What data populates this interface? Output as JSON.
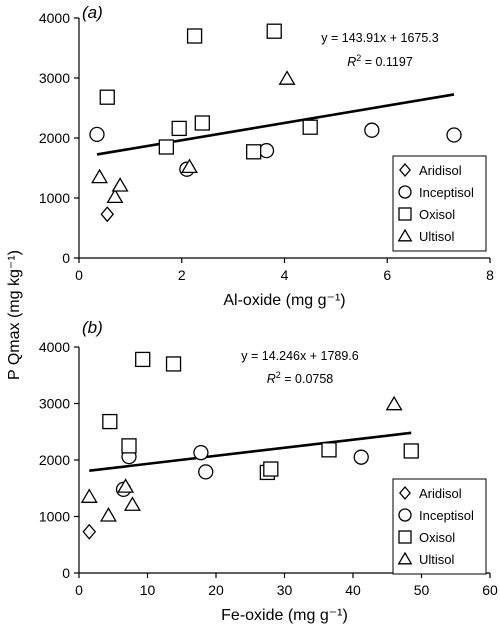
{
  "figure": {
    "shared_ylabel": "P Qmax (mg kg⁻¹)"
  },
  "chart_data": [
    {
      "type": "scatter",
      "panel_label": "(a)",
      "xlabel": "Al-oxide (mg g⁻¹)",
      "ylabel": "P Qmax (mg kg⁻¹)",
      "xlim": [
        0,
        8
      ],
      "ylim": [
        0,
        4000
      ],
      "xticks": [
        0,
        2,
        4,
        6,
        8
      ],
      "yticks": [
        0,
        1000,
        2000,
        3000,
        4000
      ],
      "grid": false,
      "legend_position": "bottom-right",
      "equation": "y = 143.91x + 1675.3",
      "r2_label": "R",
      "r2_value": " = 0.1197",
      "trendline": {
        "slope": 143.91,
        "intercept": 1675.3,
        "x_range": [
          0.35,
          7.3
        ]
      },
      "series": [
        {
          "name": "Aridisol",
          "marker": "diamond",
          "points": [
            [
              0.55,
              730
            ]
          ]
        },
        {
          "name": "Inceptisol",
          "marker": "circle",
          "points": [
            [
              0.35,
              2060
            ],
            [
              2.1,
              1480
            ],
            [
              3.65,
              1790
            ],
            [
              5.7,
              2130
            ],
            [
              7.3,
              2050
            ]
          ]
        },
        {
          "name": "Oxisol",
          "marker": "square",
          "points": [
            [
              0.55,
              2680
            ],
            [
              1.7,
              1850
            ],
            [
              1.95,
              2160
            ],
            [
              2.25,
              3700
            ],
            [
              2.4,
              2250
            ],
            [
              3.4,
              1770
            ],
            [
              3.8,
              3780
            ],
            [
              4.5,
              2180
            ]
          ]
        },
        {
          "name": "Ultisol",
          "marker": "triangle",
          "points": [
            [
              0.4,
              1350
            ],
            [
              0.7,
              1020
            ],
            [
              0.8,
              1210
            ],
            [
              2.15,
              1520
            ],
            [
              4.05,
              2990
            ]
          ]
        }
      ]
    },
    {
      "type": "scatter",
      "panel_label": "(b)",
      "xlabel": "Fe-oxide (mg g⁻¹)",
      "ylabel": "P Qmax (mg kg⁻¹)",
      "xlim": [
        0,
        60
      ],
      "ylim": [
        0,
        4000
      ],
      "xticks": [
        0,
        10,
        20,
        30,
        40,
        50,
        60
      ],
      "yticks": [
        0,
        1000,
        2000,
        3000,
        4000
      ],
      "grid": false,
      "legend_position": "bottom-right",
      "equation": "y = 14.246x + 1789.6",
      "r2_label": "R",
      "r2_value": " = 0.0758",
      "trendline": {
        "slope": 14.246,
        "intercept": 1789.6,
        "x_range": [
          1.5,
          48.5
        ]
      },
      "series": [
        {
          "name": "Aridisol",
          "marker": "diamond",
          "points": [
            [
              1.5,
              730
            ]
          ]
        },
        {
          "name": "Inceptisol",
          "marker": "circle",
          "points": [
            [
              6.5,
              1480
            ],
            [
              7.3,
              2060
            ],
            [
              17.8,
              2130
            ],
            [
              18.5,
              1790
            ],
            [
              41.2,
              2050
            ]
          ]
        },
        {
          "name": "Oxisol",
          "marker": "square",
          "points": [
            [
              4.5,
              2680
            ],
            [
              7.3,
              2250
            ],
            [
              9.3,
              3780
            ],
            [
              13.8,
              3700
            ],
            [
              27.5,
              1780
            ],
            [
              28.0,
              1840
            ],
            [
              36.5,
              2180
            ],
            [
              48.5,
              2160
            ]
          ]
        },
        {
          "name": "Ultisol",
          "marker": "triangle",
          "points": [
            [
              1.5,
              1350
            ],
            [
              4.3,
              1020
            ],
            [
              6.8,
              1530
            ],
            [
              7.8,
              1210
            ],
            [
              46.0,
              2990
            ]
          ]
        }
      ]
    }
  ]
}
